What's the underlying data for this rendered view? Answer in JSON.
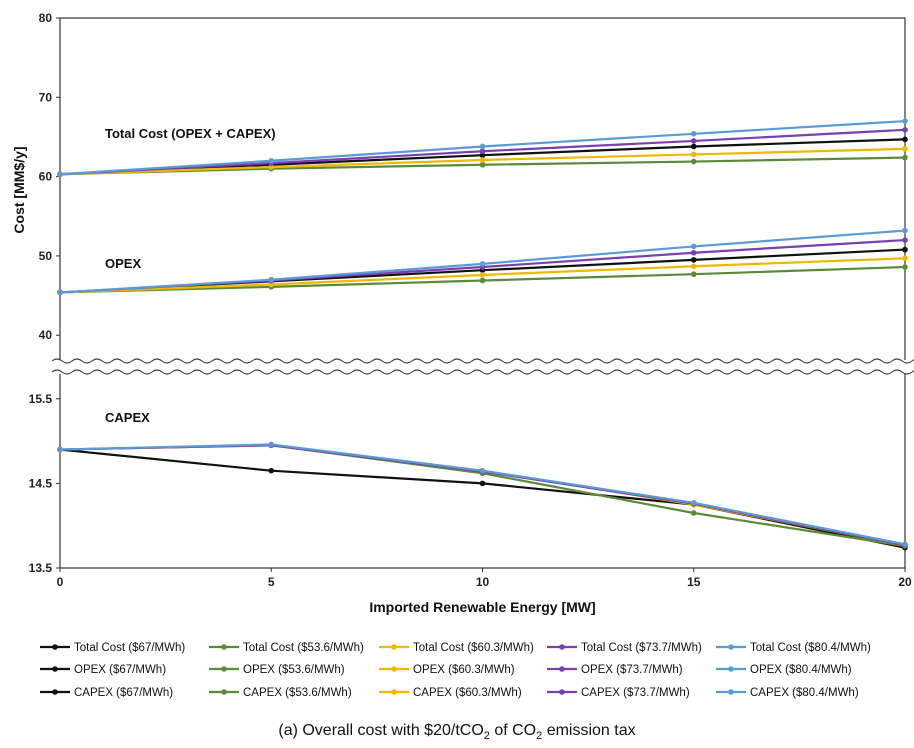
{
  "chart_data": {
    "type": "line",
    "xlabel": "Imported Renewable Energy [MW]",
    "ylabel": "Cost [MM$/y]",
    "x": [
      0,
      5,
      10,
      15,
      20
    ],
    "x_ticks": [
      "0",
      "5",
      "10",
      "15",
      "20"
    ],
    "xlim": [
      0,
      20
    ],
    "upper_panel": {
      "ylim": [
        36.5,
        80
      ],
      "ticks": [
        40,
        50,
        60,
        70,
        80
      ]
    },
    "lower_panel": {
      "ylim": [
        13.5,
        15.58
      ],
      "ticks": [
        13.5,
        14.5,
        15.5
      ],
      "tick_labels": [
        "13.5",
        "14.5",
        "15.5"
      ]
    },
    "axis_break": true,
    "grid": false,
    "legend_position": "bottom",
    "group_labels": {
      "total": "Total Cost (OPEX + CAPEX)",
      "opex": "OPEX",
      "capex": "CAPEX"
    },
    "series": [
      {
        "name": "Total Cost ($67/MWh)",
        "group": "total",
        "color": "#111111",
        "values": [
          60.3,
          61.5,
          62.7,
          63.8,
          64.7
        ]
      },
      {
        "name": "Total Cost ($53.6/MWh)",
        "group": "total",
        "color": "#5b8a3a",
        "values": [
          60.3,
          61.0,
          61.5,
          61.9,
          62.4
        ]
      },
      {
        "name": "Total Cost ($60.3/MWh)",
        "group": "total",
        "color": "#f2b800",
        "values": [
          60.3,
          61.2,
          62.1,
          62.8,
          63.5
        ]
      },
      {
        "name": "Total Cost ($73.7/MWh)",
        "group": "total",
        "color": "#7a3fb0",
        "values": [
          60.3,
          61.7,
          63.2,
          64.5,
          65.9
        ]
      },
      {
        "name": "Total Cost ($80.4/MWh)",
        "group": "total",
        "color": "#5b9bd5",
        "values": [
          60.3,
          62.0,
          63.8,
          65.4,
          67.0
        ]
      },
      {
        "name": "OPEX ($67/MWh)",
        "group": "opex",
        "color": "#111111",
        "values": [
          45.4,
          46.8,
          48.2,
          49.5,
          50.8
        ]
      },
      {
        "name": "OPEX ($53.6/MWh)",
        "group": "opex",
        "color": "#5b8a3a",
        "values": [
          45.4,
          46.1,
          46.9,
          47.7,
          48.6
        ]
      },
      {
        "name": "OPEX ($60.3/MWh)",
        "group": "opex",
        "color": "#f2b800",
        "values": [
          45.4,
          46.4,
          47.6,
          48.7,
          49.7
        ]
      },
      {
        "name": "OPEX ($73.7/MWh)",
        "group": "opex",
        "color": "#7a3fb0",
        "values": [
          45.4,
          46.9,
          48.6,
          50.4,
          52.0
        ]
      },
      {
        "name": "OPEX ($80.4/MWh)",
        "group": "opex",
        "color": "#5b9bd5",
        "values": [
          45.4,
          47.0,
          49.0,
          51.2,
          53.2
        ]
      },
      {
        "name": "CAPEX ($67/MWh)",
        "group": "capex",
        "color": "#111111",
        "values": [
          14.9,
          14.65,
          14.5,
          14.25,
          13.74
        ]
      },
      {
        "name": "CAPEX ($53.6/MWh)",
        "group": "capex",
        "color": "#5b8a3a",
        "values": [
          14.9,
          14.95,
          14.62,
          14.15,
          13.76
        ]
      },
      {
        "name": "CAPEX ($60.3/MWh)",
        "group": "capex",
        "color": "#f2b800",
        "values": [
          14.9,
          14.95,
          14.65,
          14.25,
          13.77
        ]
      },
      {
        "name": "CAPEX ($73.7/MWh)",
        "group": "capex",
        "color": "#7a3fb0",
        "values": [
          14.9,
          14.95,
          14.64,
          14.26,
          13.77
        ]
      },
      {
        "name": "CAPEX ($80.4/MWh)",
        "group": "capex",
        "color": "#5b9bd5",
        "values": [
          14.9,
          14.96,
          14.65,
          14.27,
          13.78
        ]
      }
    ]
  },
  "caption": {
    "prefix": "(a)  Overall cost with $20/tCO",
    "sub1": "2",
    "middle": " of CO",
    "sub2": "2",
    "suffix": " emission tax"
  }
}
